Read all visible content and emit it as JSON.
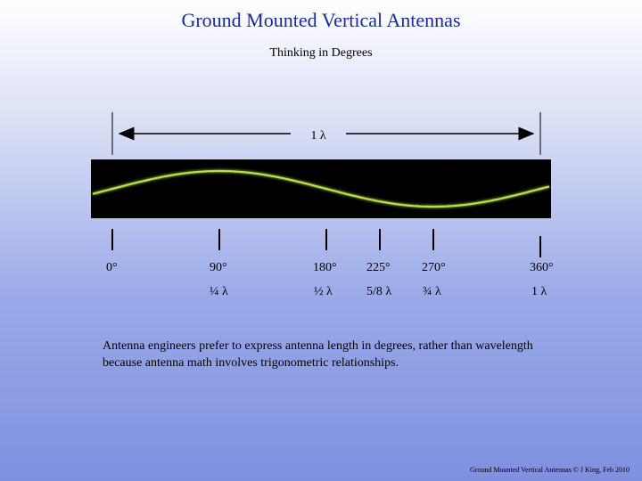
{
  "title": "Ground Mounted Vertical Antennas",
  "subtitle": "Thinking in Degrees",
  "wavelength_label": "1 λ",
  "markers": [
    {
      "degree": "0°",
      "fraction": ""
    },
    {
      "degree": "90°",
      "fraction": "¼ λ"
    },
    {
      "degree": "180°",
      "fraction": "½ λ"
    },
    {
      "degree": "225°",
      "fraction": "5/8 λ"
    },
    {
      "degree": "270°",
      "fraction": "¾ λ"
    },
    {
      "degree": "360°",
      "fraction": "1 λ"
    }
  ],
  "paragraph": "Antenna engineers prefer to express antenna length in degrees, rather than wavelength because antenna math involves trigonometric relationships.",
  "footer": "Ground Mounted Vertical Antennas © J King, Feb 2010",
  "colors": {
    "title": "#1a2a9c",
    "wave": "#b8e04a",
    "band": "#000000"
  }
}
